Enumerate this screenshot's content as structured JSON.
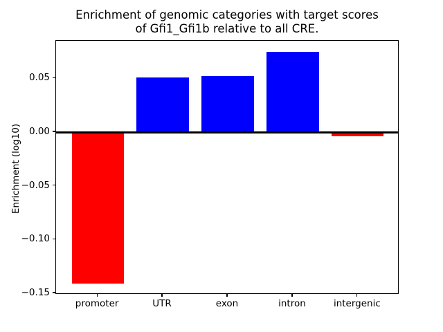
{
  "figure": {
    "background": "#ffffff",
    "text_color": "#000000"
  },
  "chart_data": {
    "type": "bar",
    "title": "Enrichment of genomic categories with target scores\nof Gfi1_Gfi1b relative to all CRE.",
    "xlabel": "",
    "ylabel": "Enrichment (log10)",
    "categories": [
      "promoter",
      "UTR",
      "exon",
      "intron",
      "intergenic"
    ],
    "values": [
      -0.141,
      0.051,
      0.052,
      0.075,
      -0.004
    ],
    "bar_colors": [
      "#ff0000",
      "#0000ff",
      "#0000ff",
      "#0000ff",
      "#ff0000"
    ],
    "positive_color": "#0000ff",
    "negative_color": "#ff0000",
    "ylim": [
      -0.1513,
      0.085
    ],
    "xlim": [
      -0.64,
      4.64
    ],
    "bar_width": 0.8,
    "grid": false,
    "legend": null,
    "zero_line": {
      "value": 0,
      "color": "#000000"
    },
    "yticks": [
      {
        "value": 0.05,
        "label": "0.05"
      },
      {
        "value": 0.0,
        "label": "0.00"
      },
      {
        "value": -0.05,
        "label": "−0.05"
      },
      {
        "value": -0.1,
        "label": "−0.10"
      },
      {
        "value": -0.15,
        "label": "−0.15"
      }
    ]
  }
}
